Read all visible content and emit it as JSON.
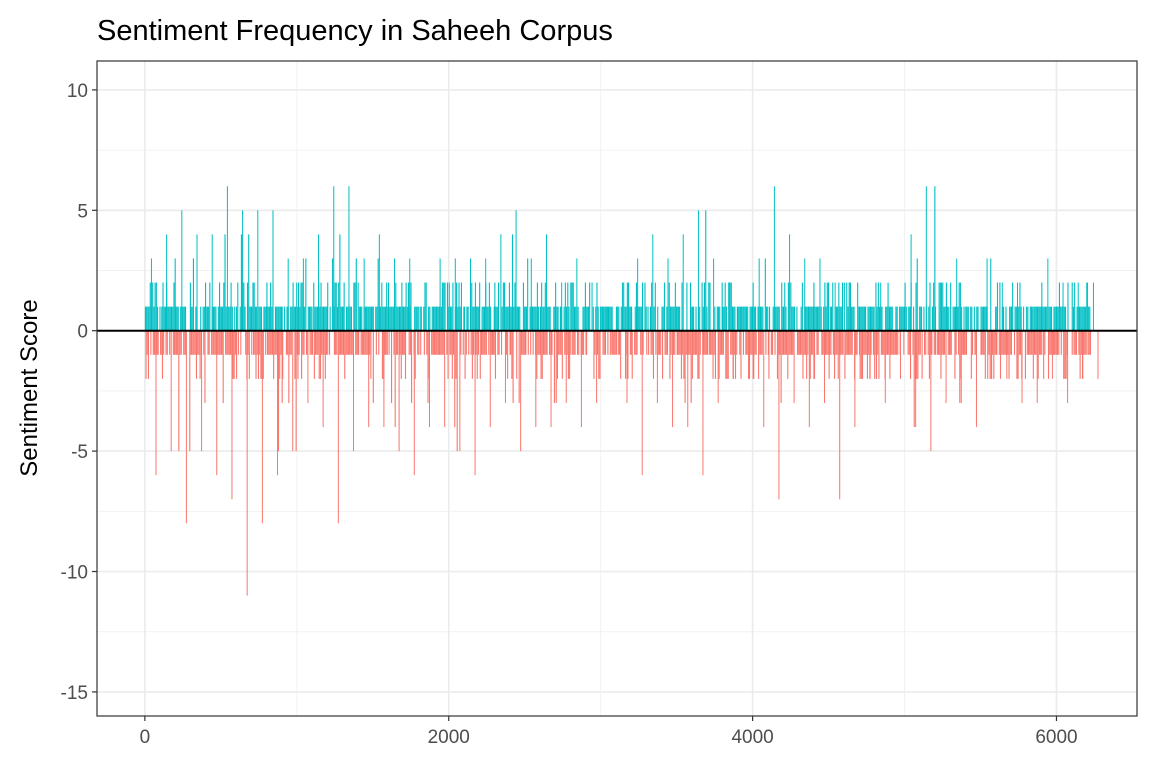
{
  "chart_data": {
    "type": "bar",
    "title": "Sentiment Frequency in Saheeh Corpus",
    "xlabel": "",
    "ylabel": "Sentiment Score",
    "xlim": [
      -315,
      6530
    ],
    "ylim": [
      -16,
      11.2
    ],
    "x_ticks": [
      0,
      2000,
      4000,
      6000
    ],
    "y_ticks": [
      10,
      5,
      0,
      -5,
      -10,
      -15
    ],
    "x_tick_labels": [
      "0",
      "2000",
      "4000",
      "6000"
    ],
    "y_tick_labels": [
      "10",
      "5",
      "0",
      "-5",
      "-10",
      "-15"
    ],
    "grid": true,
    "legend": "none",
    "colors": {
      "positive": "#00BFC4",
      "negative": "#F8766D",
      "zero_line": "#000000"
    },
    "bin_width": 100,
    "binned_extremes": {
      "bin_start": [
        0,
        100,
        200,
        300,
        400,
        500,
        600,
        700,
        800,
        900,
        1000,
        1100,
        1200,
        1300,
        1400,
        1500,
        1600,
        1700,
        1800,
        1900,
        2000,
        2100,
        2200,
        2300,
        2400,
        2500,
        2600,
        2700,
        2800,
        2900,
        3000,
        3100,
        3200,
        3300,
        3400,
        3500,
        3600,
        3700,
        3800,
        3900,
        4000,
        4100,
        4200,
        4300,
        4400,
        4500,
        4600,
        4700,
        4800,
        4900,
        5000,
        5100,
        5200,
        5300,
        5400,
        5500,
        5600,
        5700,
        5800,
        5900,
        6000,
        6100,
        6200
      ],
      "max": [
        3,
        4,
        5,
        4,
        4,
        6,
        5,
        5,
        5,
        3,
        3,
        4,
        6,
        6,
        3,
        4,
        3,
        3,
        2,
        3,
        3,
        3,
        3,
        4,
        5,
        3,
        4,
        2,
        3,
        2,
        1,
        2,
        3,
        4,
        3,
        4,
        5,
        3,
        2,
        1,
        3,
        6,
        4,
        3,
        3,
        2,
        2,
        1,
        2,
        1,
        4,
        6,
        2,
        3,
        1,
        3,
        2,
        2,
        1,
        3,
        2,
        2,
        2
      ],
      "min": [
        -6,
        -5,
        -8,
        -5,
        -6,
        -7,
        -11,
        -8,
        -6,
        -5,
        -3,
        -4,
        -8,
        -5,
        -4,
        -4,
        -5,
        -6,
        -4,
        -4,
        -5,
        -6,
        -4,
        -3,
        -5,
        -4,
        -4,
        -3,
        -4,
        -3,
        -1,
        -3,
        -6,
        -3,
        -4,
        -4,
        -6,
        -3,
        -2,
        -2,
        -4,
        -7,
        -3,
        -4,
        -3,
        -7,
        -4,
        -2,
        -3,
        -2,
        -4,
        -5,
        -3,
        -3,
        -4,
        -2,
        -2,
        -3,
        -3,
        -2,
        -3,
        -2,
        -2
      ]
    }
  }
}
